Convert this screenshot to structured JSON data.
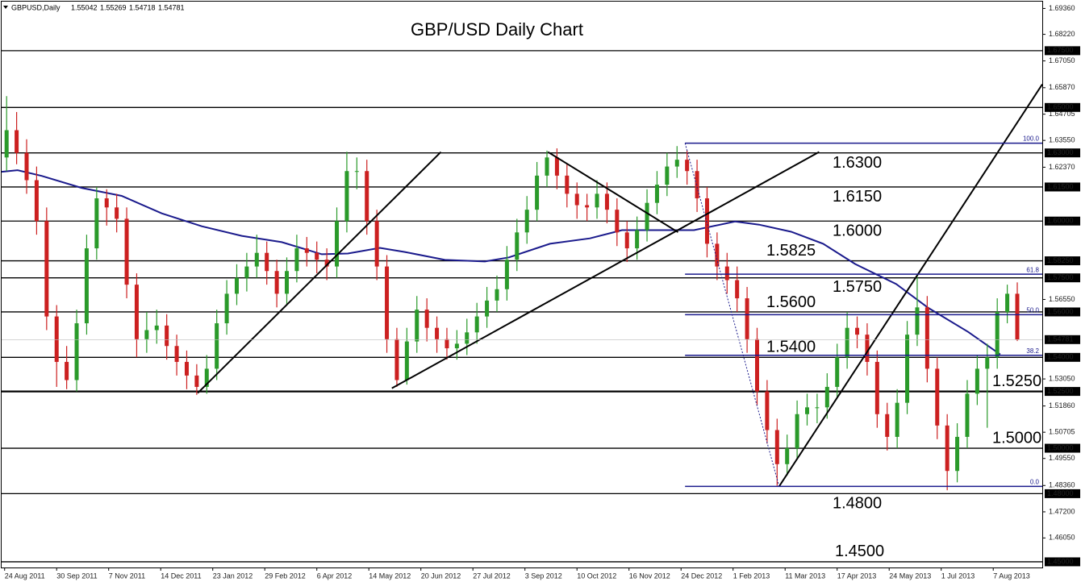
{
  "header": {
    "symbol": "GBPUSD,Daily",
    "ohlc": [
      "1.55042",
      "1.55269",
      "1.54718",
      "1.54781"
    ]
  },
  "chart_data": {
    "type": "candlestick",
    "title": "GBP/USD Daily Chart",
    "xlim": [
      0,
      104
    ],
    "ylim": [
      1.4475,
      1.6966
    ],
    "xticks": [
      {
        "value": 0.3,
        "label": "24 Aug 2011"
      },
      {
        "value": 5.5,
        "label": "30 Sep 2011"
      },
      {
        "value": 10.7,
        "label": "7 Nov 2011"
      },
      {
        "value": 15.9,
        "label": "14 Dec 2011"
      },
      {
        "value": 21.1,
        "label": "23 Jan 2012"
      },
      {
        "value": 26.3,
        "label": "29 Feb 2012"
      },
      {
        "value": 31.5,
        "label": "6 Apr 2012"
      },
      {
        "value": 36.7,
        "label": "14 May 2012"
      },
      {
        "value": 41.9,
        "label": "20 Jun 2012"
      },
      {
        "value": 47.1,
        "label": "27 Jul 2012"
      },
      {
        "value": 52.3,
        "label": "3 Sep 2012"
      },
      {
        "value": 57.5,
        "label": "10 Oct 2012"
      },
      {
        "value": 62.7,
        "label": "16 Nov 2012"
      },
      {
        "value": 67.9,
        "label": "24 Dec 2012"
      },
      {
        "value": 73.1,
        "label": "1 Feb 2013"
      },
      {
        "value": 78.3,
        "label": "11 Mar 2013"
      },
      {
        "value": 83.5,
        "label": "17 Apr 2013"
      },
      {
        "value": 88.7,
        "label": "24 May 2013"
      },
      {
        "value": 93.9,
        "label": "1 Jul 2013"
      },
      {
        "value": 99.1,
        "label": "7 Aug 2013"
      }
    ],
    "yticks": [
      {
        "value": 1.6936,
        "label": "1.69360"
      },
      {
        "value": 1.6822,
        "label": "1.68220"
      },
      {
        "value": 1.6705,
        "label": "1.67050"
      },
      {
        "value": 1.6587,
        "label": "1.65870"
      },
      1.64705,
      {
        "value": 1.6355,
        "label": "1.63550"
      },
      {
        "value": 1.6237,
        "label": "1.62370"
      },
      {
        "value": 1.5655,
        "label": "1.56550"
      },
      {
        "value": 1.5305,
        "label": "1.53050"
      },
      {
        "value": 1.5186,
        "label": "1.51860"
      },
      1.50705,
      {
        "value": 1.4955,
        "label": "1.49550"
      },
      {
        "value": 1.4836,
        "label": "1.48360"
      },
      {
        "value": 1.472,
        "label": "1.47200"
      },
      {
        "value": 1.4605,
        "label": "1.46050"
      }
    ],
    "up_color": "#2a9a2a",
    "down_color": "#cc2020",
    "candles": [
      [
        1.628,
        1.655,
        1.622,
        1.64
      ],
      [
        1.64,
        1.648,
        1.625,
        1.63
      ],
      [
        1.63,
        1.636,
        1.612,
        1.618
      ],
      [
        1.618,
        1.624,
        1.594,
        1.6
      ],
      [
        1.6,
        1.606,
        1.552,
        1.558
      ],
      [
        1.558,
        1.563,
        1.527,
        1.538
      ],
      [
        1.538,
        1.545,
        1.526,
        1.53
      ],
      [
        1.53,
        1.561,
        1.525,
        1.555
      ],
      [
        1.555,
        1.594,
        1.55,
        1.588
      ],
      [
        1.588,
        1.615,
        1.583,
        1.61
      ],
      [
        1.61,
        1.614,
        1.598,
        1.606
      ],
      [
        1.606,
        1.612,
        1.595,
        1.601
      ],
      [
        1.601,
        1.606,
        1.566,
        1.572
      ],
      [
        1.572,
        1.577,
        1.54,
        1.548
      ],
      [
        1.548,
        1.56,
        1.542,
        1.552
      ],
      [
        1.552,
        1.561,
        1.546,
        1.554
      ],
      [
        1.554,
        1.559,
        1.539,
        1.545
      ],
      [
        1.545,
        1.55,
        1.532,
        1.538
      ],
      [
        1.538,
        1.543,
        1.526,
        1.532
      ],
      [
        1.532,
        1.537,
        1.5235,
        1.527
      ],
      [
        1.527,
        1.541,
        1.524,
        1.535
      ],
      [
        1.535,
        1.561,
        1.53,
        1.555
      ],
      [
        1.555,
        1.574,
        1.55,
        1.568
      ],
      [
        1.568,
        1.581,
        1.563,
        1.575
      ],
      [
        1.575,
        1.586,
        1.569,
        1.58
      ],
      [
        1.58,
        1.594,
        1.575,
        1.586
      ],
      [
        1.586,
        1.591,
        1.572,
        1.578
      ],
      [
        1.578,
        1.583,
        1.562,
        1.568
      ],
      [
        1.568,
        1.584,
        1.563,
        1.578
      ],
      [
        1.578,
        1.594,
        1.573,
        1.588
      ],
      [
        1.588,
        1.593,
        1.58,
        1.586
      ],
      [
        1.586,
        1.591,
        1.577,
        1.583
      ],
      [
        1.583,
        1.588,
        1.574,
        1.58
      ],
      [
        1.58,
        1.606,
        1.575,
        1.6
      ],
      [
        1.6,
        1.6305,
        1.595,
        1.622
      ],
      [
        1.622,
        1.628,
        1.614,
        1.622
      ],
      [
        1.622,
        1.627,
        1.594,
        1.6
      ],
      [
        1.6,
        1.605,
        1.574,
        1.58
      ],
      [
        1.58,
        1.585,
        1.542,
        1.548
      ],
      [
        1.548,
        1.553,
        1.527,
        1.53
      ],
      [
        1.53,
        1.553,
        1.528,
        1.547
      ],
      [
        1.547,
        1.567,
        1.542,
        1.561
      ],
      [
        1.561,
        1.566,
        1.547,
        1.553
      ],
      [
        1.553,
        1.558,
        1.542,
        1.548
      ],
      [
        1.548,
        1.553,
        1.539,
        1.544
      ],
      [
        1.544,
        1.552,
        1.539,
        1.546
      ],
      [
        1.546,
        1.557,
        1.541,
        1.551
      ],
      [
        1.551,
        1.564,
        1.546,
        1.558
      ],
      [
        1.558,
        1.571,
        1.553,
        1.565
      ],
      [
        1.565,
        1.576,
        1.56,
        1.57
      ],
      [
        1.57,
        1.589,
        1.565,
        1.583
      ],
      [
        1.583,
        1.601,
        1.578,
        1.595
      ],
      [
        1.595,
        1.611,
        1.59,
        1.605
      ],
      [
        1.605,
        1.626,
        1.6,
        1.62
      ],
      [
        1.62,
        1.631,
        1.615,
        1.628
      ],
      [
        1.628,
        1.632,
        1.614,
        1.62
      ],
      [
        1.62,
        1.625,
        1.606,
        1.612
      ],
      [
        1.612,
        1.617,
        1.601,
        1.607
      ],
      [
        1.607,
        1.612,
        1.6,
        1.606
      ],
      [
        1.606,
        1.618,
        1.601,
        1.612
      ],
      [
        1.612,
        1.617,
        1.599,
        1.605
      ],
      [
        1.605,
        1.61,
        1.589,
        1.595
      ],
      [
        1.595,
        1.6,
        1.582,
        1.588
      ],
      [
        1.588,
        1.602,
        1.583,
        1.596
      ],
      [
        1.596,
        1.614,
        1.591,
        1.608
      ],
      [
        1.608,
        1.622,
        1.603,
        1.616
      ],
      [
        1.616,
        1.63,
        1.611,
        1.624
      ],
      [
        1.624,
        1.633,
        1.619,
        1.627
      ],
      [
        1.627,
        1.631,
        1.616,
        1.622
      ],
      [
        1.622,
        1.627,
        1.604,
        1.61
      ],
      [
        1.61,
        1.615,
        1.584,
        1.59
      ],
      [
        1.59,
        1.595,
        1.574,
        1.58
      ],
      [
        1.58,
        1.586,
        1.568,
        1.574
      ],
      [
        1.574,
        1.58,
        1.56,
        1.566
      ],
      [
        1.566,
        1.571,
        1.542,
        1.548
      ],
      [
        1.548,
        1.553,
        1.519,
        1.525
      ],
      [
        1.525,
        1.53,
        1.502,
        1.508
      ],
      [
        1.508,
        1.513,
        1.4835,
        1.493
      ],
      [
        1.493,
        1.506,
        1.488,
        1.5
      ],
      [
        1.5,
        1.521,
        1.495,
        1.515
      ],
      [
        1.515,
        1.524,
        1.51,
        1.518
      ],
      [
        1.518,
        1.524,
        1.511,
        1.518
      ],
      [
        1.518,
        1.533,
        1.513,
        1.527
      ],
      [
        1.527,
        1.546,
        1.522,
        1.54
      ],
      [
        1.54,
        1.56,
        1.535,
        1.553
      ],
      [
        1.553,
        1.558,
        1.544,
        1.55
      ],
      [
        1.55,
        1.555,
        1.532,
        1.538
      ],
      [
        1.538,
        1.543,
        1.509,
        1.515
      ],
      [
        1.515,
        1.52,
        1.499,
        1.505
      ],
      [
        1.505,
        1.526,
        1.5,
        1.52
      ],
      [
        1.52,
        1.556,
        1.515,
        1.55
      ],
      [
        1.55,
        1.5755,
        1.545,
        1.562
      ],
      [
        1.562,
        1.567,
        1.529,
        1.535
      ],
      [
        1.535,
        1.54,
        1.504,
        1.51
      ],
      [
        1.51,
        1.515,
        1.4815,
        1.49
      ],
      [
        1.49,
        1.511,
        1.485,
        1.505
      ],
      [
        1.505,
        1.53,
        1.5,
        1.524
      ],
      [
        1.524,
        1.541,
        1.519,
        1.535
      ],
      [
        1.535,
        1.546,
        1.509,
        1.54
      ],
      [
        1.54,
        1.566,
        1.535,
        1.56
      ],
      [
        1.56,
        1.572,
        1.555,
        1.568
      ],
      [
        1.568,
        1.573,
        1.54718,
        1.54781
      ]
    ],
    "moving_average": {
      "color": "#1a1a8c",
      "x": [
        0,
        1.6,
        4,
        8,
        12,
        16,
        20,
        24,
        28,
        32,
        34.6,
        37.8,
        40.3,
        44.3,
        48.3,
        50.7,
        54.8,
        58.8,
        62,
        65.2,
        69.2,
        73.3,
        75.7,
        78.9,
        82.1,
        85.3,
        89.4,
        92.6,
        96.6,
        99.8
      ],
      "values": [
        1.6217,
        1.6224,
        1.6199,
        1.6146,
        1.6111,
        1.6034,
        1.5977,
        1.5935,
        1.5907,
        1.5854,
        1.5857,
        1.5882,
        1.5864,
        1.5829,
        1.5822,
        1.584,
        1.59,
        1.5924,
        1.596,
        1.596,
        1.596,
        1.5998,
        1.5984,
        1.5953,
        1.59,
        1.5811,
        1.5723,
        1.5618,
        1.5512,
        1.5413
      ]
    },
    "levels": [
      {
        "value": 1.675,
        "axis_label": "1.67500"
      },
      {
        "value": 1.65,
        "axis_label": "1.65000"
      },
      {
        "value": 1.63,
        "label": "1.6300",
        "axis_label": "1.63000"
      },
      {
        "value": 1.615,
        "label": "1.6150",
        "axis_label": "1.61500"
      },
      {
        "value": 1.6,
        "label": "1.6000",
        "axis_label": "1.60000"
      },
      {
        "value": 1.5825,
        "label": "1.5825",
        "axis_label": "1.58250"
      },
      {
        "value": 1.575,
        "label": "1.5750",
        "axis_label": "1.57500"
      },
      {
        "value": 1.56,
        "label": "1.5600",
        "axis_label": "1.56000"
      },
      {
        "value": 1.54,
        "label": "1.5400",
        "axis_label": "1.54000"
      },
      {
        "value": 1.525,
        "label": "1.5250",
        "axis_label": "1.52500"
      },
      {
        "value": 1.5,
        "label": "1.5000",
        "axis_label": "1.50000"
      },
      {
        "value": 1.48,
        "label": "1.4800",
        "axis_label": "1.48000"
      },
      {
        "value": 1.45,
        "label": "1.4500",
        "axis_label": "1.45000"
      }
    ],
    "last_price": {
      "value": 1.54781,
      "label": "1.54781"
    },
    "trendlines": [
      {
        "x": [
          19.6,
          43.9
        ],
        "y": [
          1.5243,
          1.6304
        ]
      },
      {
        "x": [
          39,
          81.7
        ],
        "y": [
          1.5264,
          1.6304
        ]
      },
      {
        "x": [
          54.6,
          67.6
        ],
        "y": [
          1.6304,
          1.5951
        ]
      },
      {
        "x": [
          77.7,
          104
        ],
        "y": [
          1.4832,
          1.6602
        ]
      }
    ],
    "fib": {
      "color": "#1a1a8c",
      "x": [
        68.3,
        104
      ],
      "swing": {
        "x": [
          68.3,
          77.7
        ],
        "y": [
          1.6343,
          1.4832
        ]
      },
      "levels": [
        {
          "value": 1.6343,
          "label": "100.0"
        },
        {
          "value": 1.5766,
          "label": "61.8"
        },
        {
          "value": 1.5588,
          "label": "50.0"
        },
        {
          "value": 1.5409,
          "label": "38.2"
        },
        {
          "value": 1.4832,
          "label": "0.0"
        }
      ]
    }
  }
}
